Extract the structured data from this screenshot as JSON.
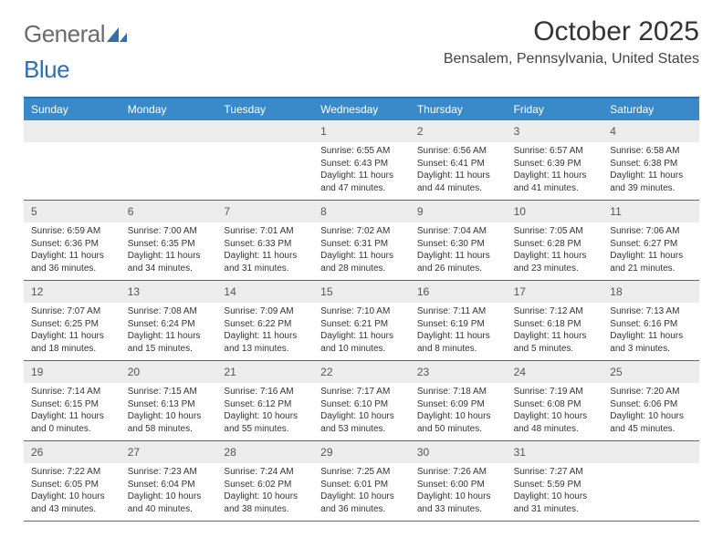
{
  "brand": {
    "g": "General",
    "b": "Blue"
  },
  "title": "October 2025",
  "location": "Bensalem, Pennsylvania, United States",
  "colors": {
    "header_bar": "#3a8ac9",
    "border": "#2f6fae",
    "daynum_bg": "#ececec",
    "text": "#333333",
    "logo_gray": "#6a6a6a",
    "logo_blue": "#2f6fae"
  },
  "daynames": [
    "Sunday",
    "Monday",
    "Tuesday",
    "Wednesday",
    "Thursday",
    "Friday",
    "Saturday"
  ],
  "weeks": [
    [
      {
        "n": "",
        "lines": []
      },
      {
        "n": "",
        "lines": []
      },
      {
        "n": "",
        "lines": []
      },
      {
        "n": "1",
        "lines": [
          "Sunrise: 6:55 AM",
          "Sunset: 6:43 PM",
          "Daylight: 11 hours",
          "and 47 minutes."
        ]
      },
      {
        "n": "2",
        "lines": [
          "Sunrise: 6:56 AM",
          "Sunset: 6:41 PM",
          "Daylight: 11 hours",
          "and 44 minutes."
        ]
      },
      {
        "n": "3",
        "lines": [
          "Sunrise: 6:57 AM",
          "Sunset: 6:39 PM",
          "Daylight: 11 hours",
          "and 41 minutes."
        ]
      },
      {
        "n": "4",
        "lines": [
          "Sunrise: 6:58 AM",
          "Sunset: 6:38 PM",
          "Daylight: 11 hours",
          "and 39 minutes."
        ]
      }
    ],
    [
      {
        "n": "5",
        "lines": [
          "Sunrise: 6:59 AM",
          "Sunset: 6:36 PM",
          "Daylight: 11 hours",
          "and 36 minutes."
        ]
      },
      {
        "n": "6",
        "lines": [
          "Sunrise: 7:00 AM",
          "Sunset: 6:35 PM",
          "Daylight: 11 hours",
          "and 34 minutes."
        ]
      },
      {
        "n": "7",
        "lines": [
          "Sunrise: 7:01 AM",
          "Sunset: 6:33 PM",
          "Daylight: 11 hours",
          "and 31 minutes."
        ]
      },
      {
        "n": "8",
        "lines": [
          "Sunrise: 7:02 AM",
          "Sunset: 6:31 PM",
          "Daylight: 11 hours",
          "and 28 minutes."
        ]
      },
      {
        "n": "9",
        "lines": [
          "Sunrise: 7:04 AM",
          "Sunset: 6:30 PM",
          "Daylight: 11 hours",
          "and 26 minutes."
        ]
      },
      {
        "n": "10",
        "lines": [
          "Sunrise: 7:05 AM",
          "Sunset: 6:28 PM",
          "Daylight: 11 hours",
          "and 23 minutes."
        ]
      },
      {
        "n": "11",
        "lines": [
          "Sunrise: 7:06 AM",
          "Sunset: 6:27 PM",
          "Daylight: 11 hours",
          "and 21 minutes."
        ]
      }
    ],
    [
      {
        "n": "12",
        "lines": [
          "Sunrise: 7:07 AM",
          "Sunset: 6:25 PM",
          "Daylight: 11 hours",
          "and 18 minutes."
        ]
      },
      {
        "n": "13",
        "lines": [
          "Sunrise: 7:08 AM",
          "Sunset: 6:24 PM",
          "Daylight: 11 hours",
          "and 15 minutes."
        ]
      },
      {
        "n": "14",
        "lines": [
          "Sunrise: 7:09 AM",
          "Sunset: 6:22 PM",
          "Daylight: 11 hours",
          "and 13 minutes."
        ]
      },
      {
        "n": "15",
        "lines": [
          "Sunrise: 7:10 AM",
          "Sunset: 6:21 PM",
          "Daylight: 11 hours",
          "and 10 minutes."
        ]
      },
      {
        "n": "16",
        "lines": [
          "Sunrise: 7:11 AM",
          "Sunset: 6:19 PM",
          "Daylight: 11 hours",
          "and 8 minutes."
        ]
      },
      {
        "n": "17",
        "lines": [
          "Sunrise: 7:12 AM",
          "Sunset: 6:18 PM",
          "Daylight: 11 hours",
          "and 5 minutes."
        ]
      },
      {
        "n": "18",
        "lines": [
          "Sunrise: 7:13 AM",
          "Sunset: 6:16 PM",
          "Daylight: 11 hours",
          "and 3 minutes."
        ]
      }
    ],
    [
      {
        "n": "19",
        "lines": [
          "Sunrise: 7:14 AM",
          "Sunset: 6:15 PM",
          "Daylight: 11 hours",
          "and 0 minutes."
        ]
      },
      {
        "n": "20",
        "lines": [
          "Sunrise: 7:15 AM",
          "Sunset: 6:13 PM",
          "Daylight: 10 hours",
          "and 58 minutes."
        ]
      },
      {
        "n": "21",
        "lines": [
          "Sunrise: 7:16 AM",
          "Sunset: 6:12 PM",
          "Daylight: 10 hours",
          "and 55 minutes."
        ]
      },
      {
        "n": "22",
        "lines": [
          "Sunrise: 7:17 AM",
          "Sunset: 6:10 PM",
          "Daylight: 10 hours",
          "and 53 minutes."
        ]
      },
      {
        "n": "23",
        "lines": [
          "Sunrise: 7:18 AM",
          "Sunset: 6:09 PM",
          "Daylight: 10 hours",
          "and 50 minutes."
        ]
      },
      {
        "n": "24",
        "lines": [
          "Sunrise: 7:19 AM",
          "Sunset: 6:08 PM",
          "Daylight: 10 hours",
          "and 48 minutes."
        ]
      },
      {
        "n": "25",
        "lines": [
          "Sunrise: 7:20 AM",
          "Sunset: 6:06 PM",
          "Daylight: 10 hours",
          "and 45 minutes."
        ]
      }
    ],
    [
      {
        "n": "26",
        "lines": [
          "Sunrise: 7:22 AM",
          "Sunset: 6:05 PM",
          "Daylight: 10 hours",
          "and 43 minutes."
        ]
      },
      {
        "n": "27",
        "lines": [
          "Sunrise: 7:23 AM",
          "Sunset: 6:04 PM",
          "Daylight: 10 hours",
          "and 40 minutes."
        ]
      },
      {
        "n": "28",
        "lines": [
          "Sunrise: 7:24 AM",
          "Sunset: 6:02 PM",
          "Daylight: 10 hours",
          "and 38 minutes."
        ]
      },
      {
        "n": "29",
        "lines": [
          "Sunrise: 7:25 AM",
          "Sunset: 6:01 PM",
          "Daylight: 10 hours",
          "and 36 minutes."
        ]
      },
      {
        "n": "30",
        "lines": [
          "Sunrise: 7:26 AM",
          "Sunset: 6:00 PM",
          "Daylight: 10 hours",
          "and 33 minutes."
        ]
      },
      {
        "n": "31",
        "lines": [
          "Sunrise: 7:27 AM",
          "Sunset: 5:59 PM",
          "Daylight: 10 hours",
          "and 31 minutes."
        ]
      },
      {
        "n": "",
        "lines": []
      }
    ]
  ]
}
